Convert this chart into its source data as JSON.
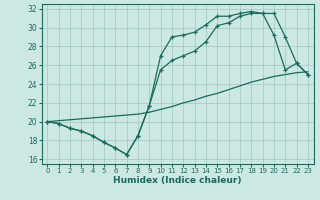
{
  "xlabel": "Humidex (Indice chaleur)",
  "bg_color": "#cce8e2",
  "grid_color": "#a0c8c0",
  "line_color": "#1a6b5a",
  "xlim": [
    -0.5,
    23.5
  ],
  "ylim": [
    15.5,
    32.5
  ],
  "xticks": [
    0,
    1,
    2,
    3,
    4,
    5,
    6,
    7,
    8,
    9,
    10,
    11,
    12,
    13,
    14,
    15,
    16,
    17,
    18,
    19,
    20,
    21,
    22,
    23
  ],
  "yticks": [
    16,
    18,
    20,
    22,
    24,
    26,
    28,
    30,
    32
  ],
  "s1_x": [
    0,
    1,
    2,
    3,
    4,
    5,
    6,
    7,
    8,
    9,
    10,
    11,
    12,
    13,
    14,
    15,
    16,
    17,
    18,
    19,
    20,
    21,
    22,
    23
  ],
  "s1_y": [
    20.0,
    19.8,
    19.3,
    19.0,
    18.5,
    17.8,
    17.2,
    16.5,
    18.5,
    21.7,
    27.0,
    29.0,
    29.2,
    29.5,
    30.3,
    31.2,
    31.2,
    31.5,
    31.7,
    31.5,
    31.5,
    29.0,
    26.2,
    25.0
  ],
  "s2_x": [
    0,
    1,
    2,
    3,
    4,
    5,
    6,
    7,
    8,
    9,
    10,
    11,
    12,
    13,
    14,
    15,
    16,
    17,
    18,
    19,
    20,
    21,
    22,
    23
  ],
  "s2_y": [
    20.0,
    19.8,
    19.3,
    19.0,
    18.5,
    17.8,
    17.2,
    16.5,
    18.5,
    21.7,
    25.5,
    26.5,
    27.0,
    27.5,
    28.5,
    30.2,
    30.5,
    31.2,
    31.5,
    31.5,
    29.2,
    25.5,
    26.2,
    25.0
  ],
  "s3_x": [
    0,
    1,
    2,
    3,
    4,
    5,
    6,
    7,
    8,
    9,
    10,
    11,
    12,
    13,
    14,
    15,
    16,
    17,
    18,
    19,
    20,
    21,
    22,
    23
  ],
  "s3_y": [
    20.0,
    20.1,
    20.2,
    20.3,
    20.4,
    20.5,
    20.6,
    20.7,
    20.8,
    21.0,
    21.3,
    21.6,
    22.0,
    22.3,
    22.7,
    23.0,
    23.4,
    23.8,
    24.2,
    24.5,
    24.8,
    25.0,
    25.2,
    25.3
  ]
}
